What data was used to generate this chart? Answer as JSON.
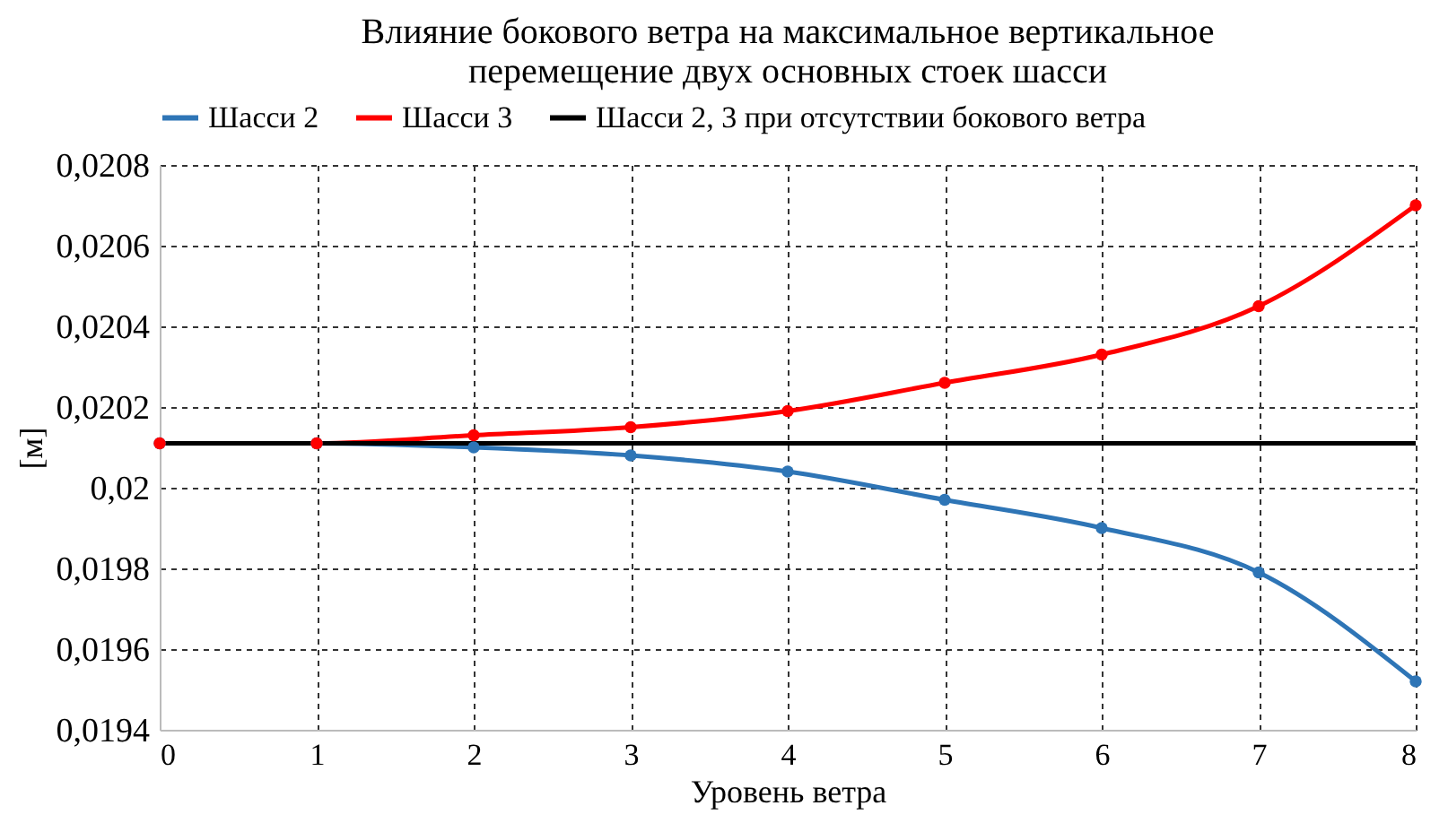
{
  "chart_data": {
    "type": "line",
    "title": "Влияние бокового ветра на максимальное вертикальное\nперемещение двух основных стоек шасси",
    "xlabel": "Уровень ветра",
    "ylabel": "[м]",
    "x": [
      0,
      1,
      2,
      3,
      4,
      5,
      6,
      7,
      8
    ],
    "series": [
      {
        "name": "Шасси 2",
        "color": "#2e75b6",
        "marker": "circle",
        "values": [
          0.02011,
          0.02011,
          0.0201,
          0.02008,
          0.02004,
          0.01997,
          0.0199,
          0.01979,
          0.01952
        ]
      },
      {
        "name": "Шасси 3",
        "color": "#ff0000",
        "marker": "circle",
        "values": [
          0.02011,
          0.02011,
          0.02013,
          0.02015,
          0.02019,
          0.02026,
          0.02033,
          0.02045,
          0.0207
        ]
      },
      {
        "name": "Шасси 2, 3 при отсутствии бокового ветра",
        "color": "#000000",
        "marker": "none",
        "values": [
          0.02011,
          0.02011,
          0.02011,
          0.02011,
          0.02011,
          0.02011,
          0.02011,
          0.02011,
          0.02011
        ]
      }
    ],
    "xlim": [
      0,
      8
    ],
    "xticks": [
      0,
      1,
      2,
      3,
      4,
      5,
      6,
      7,
      8
    ],
    "ylim": [
      0.0194,
      0.0208
    ],
    "yticks": [
      {
        "value": 0.0194,
        "label": "0,0194"
      },
      {
        "value": 0.0196,
        "label": "0,0196"
      },
      {
        "value": 0.0198,
        "label": "0,0198"
      },
      {
        "value": 0.02,
        "label": "0,02"
      },
      {
        "value": 0.0202,
        "label": "0,0202"
      },
      {
        "value": 0.0204,
        "label": "0,0204"
      },
      {
        "value": 0.0206,
        "label": "0,0206"
      },
      {
        "value": 0.0208,
        "label": "0,0208"
      }
    ],
    "grid": true,
    "legend": "top",
    "line_style": "solid"
  }
}
